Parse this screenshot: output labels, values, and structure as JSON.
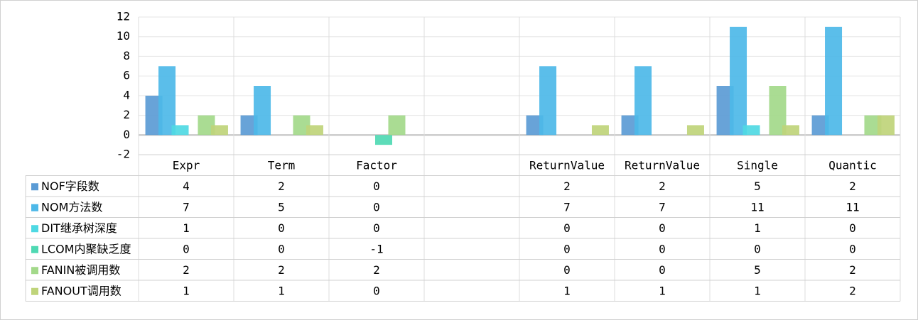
{
  "chart_data": {
    "type": "bar",
    "title": "",
    "xlabel": "",
    "ylabel": "",
    "ylim": [
      -2,
      12
    ],
    "yticks": [
      -2,
      0,
      2,
      4,
      6,
      8,
      10,
      12
    ],
    "grid": true,
    "legend": "data-table-left",
    "categories": [
      "Expr",
      "Term",
      "Factor",
      "",
      "ReturnValue",
      "ReturnValue",
      "Single",
      "Quantic"
    ],
    "series": [
      {
        "name": "NOF字段数",
        "color": "#5b9bd5",
        "values": [
          4,
          2,
          0,
          null,
          2,
          2,
          5,
          2
        ]
      },
      {
        "name": "NOM方法数",
        "color": "#4db8e8",
        "values": [
          7,
          5,
          0,
          null,
          7,
          7,
          11,
          11
        ]
      },
      {
        "name": "DIT继承树深度",
        "color": "#4fd9e3",
        "values": [
          1,
          0,
          0,
          null,
          0,
          0,
          1,
          0
        ]
      },
      {
        "name": "LCOM内聚缺乏度",
        "color": "#4fd9b3",
        "values": [
          0,
          0,
          -1,
          null,
          0,
          0,
          0,
          0
        ]
      },
      {
        "name": "FANIN被调用数",
        "color": "#a3d98a",
        "values": [
          2,
          2,
          2,
          null,
          0,
          0,
          5,
          2
        ]
      },
      {
        "name": "FANOUT调用数",
        "color": "#bfd47a",
        "values": [
          1,
          1,
          0,
          null,
          1,
          1,
          1,
          2
        ]
      }
    ]
  }
}
